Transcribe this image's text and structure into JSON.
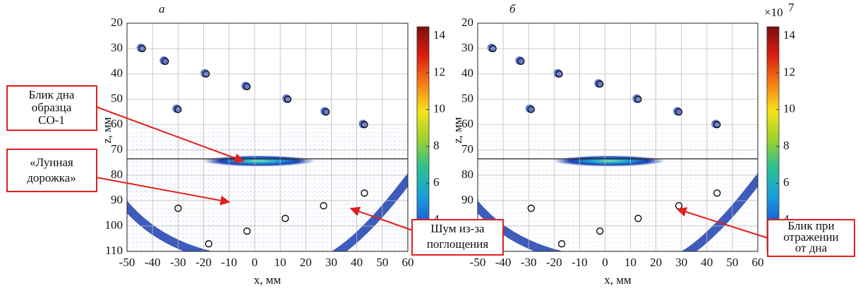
{
  "chart_data": [
    {
      "type": "scatter",
      "panel_label": "а",
      "xlabel": "x, мм",
      "ylabel": "z, мм",
      "xlim": [
        -50,
        60
      ],
      "ylim": [
        20,
        110
      ],
      "y_inverted": true,
      "xticks": [
        -50,
        -40,
        -30,
        -20,
        -10,
        0,
        10,
        20,
        30,
        40,
        50,
        60
      ],
      "yticks": [
        20,
        30,
        40,
        50,
        60,
        70,
        80,
        90,
        100,
        110
      ],
      "grid": true,
      "x": [
        -44,
        -35,
        -19,
        -3,
        13,
        28,
        43,
        -30,
        43,
        -30,
        27,
        12,
        -3,
        -18
      ],
      "y": [
        30,
        35,
        40,
        45,
        50,
        55,
        60,
        54,
        87,
        93,
        92,
        97,
        102,
        107
      ],
      "hline": 73.5,
      "colorbar": {
        "lim": [
          2.3,
          14.5
        ],
        "ticks": [
          4,
          6,
          8,
          10,
          12,
          14
        ],
        "colormap": [
          "#2a1fa0",
          "#1c5cd8",
          "#19a0d9",
          "#2cc18f",
          "#9fd12c",
          "#f7e21c",
          "#f77b16",
          "#d81c12",
          "#7d0f0e"
        ]
      },
      "annotations": [
        {
          "lines": [
            "Блик дна",
            "образца",
            "СО-1"
          ]
        },
        {
          "lines": [
            "«Лунная",
            "дорожка»"
          ]
        },
        {
          "lines": [
            "Шум из-за",
            "поглощения"
          ]
        }
      ]
    },
    {
      "type": "scatter",
      "panel_label": "б",
      "xlabel": "x, мм",
      "ylabel": "z, мм",
      "xlim": [
        -50,
        60
      ],
      "ylim": [
        20,
        110
      ],
      "y_inverted": true,
      "xticks": [
        -50,
        -40,
        -30,
        -20,
        -10,
        0,
        10,
        20,
        30,
        40,
        50,
        60
      ],
      "yticks": [
        20,
        30,
        40,
        50,
        60,
        70,
        80,
        90,
        100,
        110
      ],
      "grid": true,
      "x": [
        -44,
        -33,
        -18,
        -2,
        13,
        29,
        44,
        -29,
        44,
        -29,
        29,
        13,
        -2,
        -17
      ],
      "y": [
        30,
        35,
        40,
        44,
        50,
        55,
        60,
        54,
        87,
        93,
        92,
        97,
        102,
        107
      ],
      "hline": 73.5,
      "colorbar": {
        "lim": [
          2.3,
          14.5
        ],
        "ticks": [
          4,
          6,
          8,
          10,
          12,
          14
        ],
        "multiplier": {
          "base": "×10",
          "exponent": "7"
        },
        "colormap": [
          "#2a1fa0",
          "#1c5cd8",
          "#19a0d9",
          "#2cc18f",
          "#9fd12c",
          "#f7e21c",
          "#f77b16",
          "#d81c12",
          "#7d0f0e"
        ]
      },
      "annotations": [
        {
          "lines": [
            "Блик при",
            "отражении",
            "от дна"
          ]
        }
      ]
    }
  ]
}
